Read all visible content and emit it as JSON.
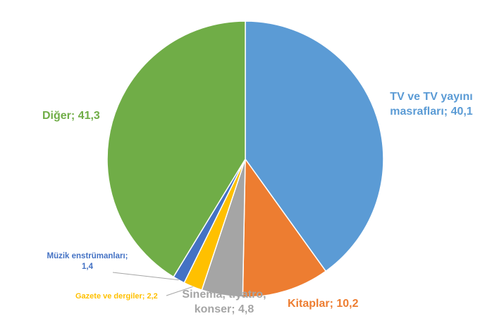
{
  "chart_data": {
    "type": "pie",
    "title": "",
    "slices": [
      {
        "category": "TV ve TV yayını masrafları",
        "value": 40.1,
        "display_value": "40,1",
        "color": "#5b9bd5"
      },
      {
        "category": "Kitaplar",
        "value": 10.2,
        "display_value": "10,2",
        "color": "#ed7d31"
      },
      {
        "category": "Sinema, tiyatro, konser",
        "value": 4.8,
        "display_value": "4,8",
        "color": "#a5a5a5"
      },
      {
        "category": "Gazete ve dergiler",
        "value": 2.2,
        "display_value": "2,2",
        "color": "#ffc000"
      },
      {
        "category": "Müzik enstrümanları",
        "value": 1.4,
        "display_value": "1,4",
        "color": "#4472c4"
      },
      {
        "category": "Diğer",
        "value": 41.3,
        "display_value": "41,3",
        "color": "#70ad47"
      }
    ],
    "data_labels": [
      "TV ve TV yayını masrafları; 40,1",
      "Kitaplar; 10,2",
      "Sinema, tiyatro, konser; 4,8",
      "Gazete ve dergiler; 2,2",
      "Müzik enstrümanları; 1,4",
      "Diğer; 41,3"
    ]
  }
}
